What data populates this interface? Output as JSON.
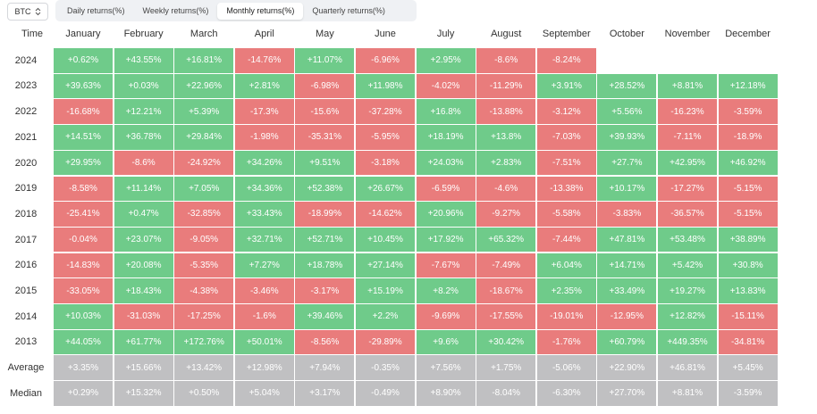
{
  "toolbar": {
    "asset": "BTC",
    "tabs": [
      "Daily returns(%)",
      "Weekly returns(%)",
      "Monthly returns(%)",
      "Quarterly returns(%)"
    ],
    "active_tab": 2
  },
  "table": {
    "corner_label": "Time",
    "months": [
      "January",
      "February",
      "March",
      "April",
      "May",
      "June",
      "July",
      "August",
      "September",
      "October",
      "November",
      "December"
    ],
    "rows": [
      {
        "label": "2024",
        "values": [
          "+0.62%",
          "+43.55%",
          "+16.81%",
          "-14.76%",
          "+11.07%",
          "-6.96%",
          "+2.95%",
          "-8.6%",
          "-8.24%",
          "",
          "",
          ""
        ]
      },
      {
        "label": "2023",
        "values": [
          "+39.63%",
          "+0.03%",
          "+22.96%",
          "+2.81%",
          "-6.98%",
          "+11.98%",
          "-4.02%",
          "-11.29%",
          "+3.91%",
          "+28.52%",
          "+8.81%",
          "+12.18%"
        ]
      },
      {
        "label": "2022",
        "values": [
          "-16.68%",
          "+12.21%",
          "+5.39%",
          "-17.3%",
          "-15.6%",
          "-37.28%",
          "+16.8%",
          "-13.88%",
          "-3.12%",
          "+5.56%",
          "-16.23%",
          "-3.59%"
        ]
      },
      {
        "label": "2021",
        "values": [
          "+14.51%",
          "+36.78%",
          "+29.84%",
          "-1.98%",
          "-35.31%",
          "-5.95%",
          "+18.19%",
          "+13.8%",
          "-7.03%",
          "+39.93%",
          "-7.11%",
          "-18.9%"
        ]
      },
      {
        "label": "2020",
        "values": [
          "+29.95%",
          "-8.6%",
          "-24.92%",
          "+34.26%",
          "+9.51%",
          "-3.18%",
          "+24.03%",
          "+2.83%",
          "-7.51%",
          "+27.7%",
          "+42.95%",
          "+46.92%"
        ]
      },
      {
        "label": "2019",
        "values": [
          "-8.58%",
          "+11.14%",
          "+7.05%",
          "+34.36%",
          "+52.38%",
          "+26.67%",
          "-6.59%",
          "-4.6%",
          "-13.38%",
          "+10.17%",
          "-17.27%",
          "-5.15%"
        ]
      },
      {
        "label": "2018",
        "values": [
          "-25.41%",
          "+0.47%",
          "-32.85%",
          "+33.43%",
          "-18.99%",
          "-14.62%",
          "+20.96%",
          "-9.27%",
          "-5.58%",
          "-3.83%",
          "-36.57%",
          "-5.15%"
        ]
      },
      {
        "label": "2017",
        "values": [
          "-0.04%",
          "+23.07%",
          "-9.05%",
          "+32.71%",
          "+52.71%",
          "+10.45%",
          "+17.92%",
          "+65.32%",
          "-7.44%",
          "+47.81%",
          "+53.48%",
          "+38.89%"
        ]
      },
      {
        "label": "2016",
        "values": [
          "-14.83%",
          "+20.08%",
          "-5.35%",
          "+7.27%",
          "+18.78%",
          "+27.14%",
          "-7.67%",
          "-7.49%",
          "+6.04%",
          "+14.71%",
          "+5.42%",
          "+30.8%"
        ]
      },
      {
        "label": "2015",
        "values": [
          "-33.05%",
          "+18.43%",
          "-4.38%",
          "-3.46%",
          "-3.17%",
          "+15.19%",
          "+8.2%",
          "-18.67%",
          "+2.35%",
          "+33.49%",
          "+19.27%",
          "+13.83%"
        ]
      },
      {
        "label": "2014",
        "values": [
          "+10.03%",
          "-31.03%",
          "-17.25%",
          "-1.6%",
          "+39.46%",
          "+2.2%",
          "-9.69%",
          "-17.55%",
          "-19.01%",
          "-12.95%",
          "+12.82%",
          "-15.11%"
        ]
      },
      {
        "label": "2013",
        "values": [
          "+44.05%",
          "+61.77%",
          "+172.76%",
          "+50.01%",
          "-8.56%",
          "-29.89%",
          "+9.6%",
          "+30.42%",
          "-1.76%",
          "+60.79%",
          "+449.35%",
          "-34.81%"
        ]
      }
    ],
    "summary_rows": [
      {
        "label": "Average",
        "values": [
          "+3.35%",
          "+15.66%",
          "+13.42%",
          "+12.98%",
          "+7.94%",
          "-0.35%",
          "+7.56%",
          "+1.75%",
          "-5.06%",
          "+22.90%",
          "+46.81%",
          "+5.45%"
        ]
      },
      {
        "label": "Median",
        "values": [
          "+0.29%",
          "+15.32%",
          "+0.50%",
          "+5.04%",
          "+3.17%",
          "-0.49%",
          "+8.90%",
          "-8.04%",
          "-6.30%",
          "+27.70%",
          "+8.81%",
          "-3.59%"
        ]
      }
    ]
  },
  "colors": {
    "positive": "#6fcb8a",
    "negative": "#e97c7c",
    "summary": "#c0c0c2"
  }
}
